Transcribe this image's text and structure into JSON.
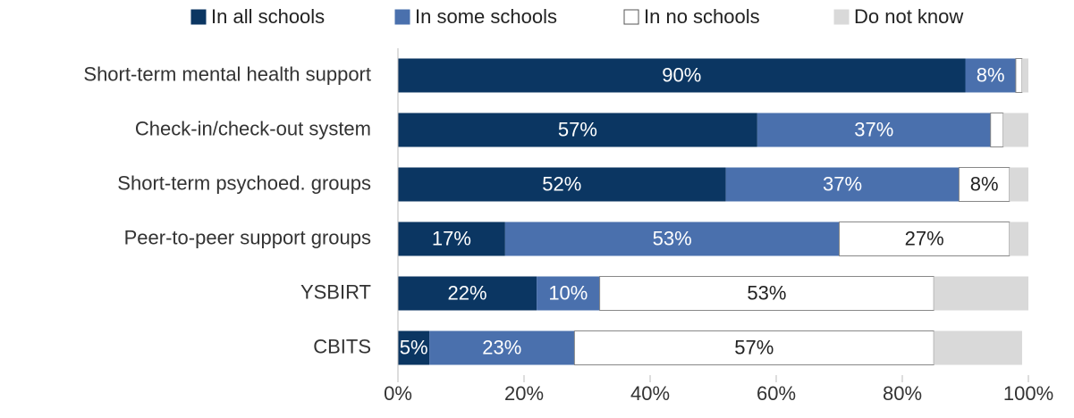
{
  "chart_data": {
    "type": "stacked-barh",
    "categories": [
      "Short-term mental health support",
      "Check-in/check-out system",
      "Short-term psychoed. groups",
      "Peer-to-peer support groups",
      "YSBIRT",
      "CBITS"
    ],
    "series": [
      {
        "name": "In all schools",
        "color": "#0b3662",
        "values": [
          90,
          57,
          52,
          17,
          22,
          5
        ],
        "value_labels": [
          "90%",
          "57%",
          "52%",
          "17%",
          "22%",
          "5%"
        ]
      },
      {
        "name": "In some schools",
        "color": "#4a70ad",
        "values": [
          8,
          37,
          37,
          53,
          10,
          23
        ],
        "value_labels": [
          "8%",
          "37%",
          "37%",
          "53%",
          "10%",
          "23%"
        ]
      },
      {
        "name": "In no schools",
        "color": "#ffffff",
        "values": [
          1,
          2,
          8,
          27,
          53,
          57
        ],
        "value_labels": [
          null,
          null,
          "8%",
          "27%",
          "53%",
          "57%"
        ]
      },
      {
        "name": "Do not know",
        "color": "#d9d9d9",
        "values": [
          1,
          4,
          3,
          3,
          15,
          14
        ],
        "value_labels": [
          null,
          null,
          null,
          null,
          null,
          null
        ]
      }
    ],
    "xlim": [
      0,
      100
    ],
    "xticks": [
      {
        "value": 0,
        "label": "0%"
      },
      {
        "value": 20,
        "label": "20%"
      },
      {
        "value": 40,
        "label": "40%"
      },
      {
        "value": 60,
        "label": "60%"
      },
      {
        "value": 80,
        "label": "80%"
      },
      {
        "value": 100,
        "label": "100%"
      }
    ],
    "legend": "top"
  }
}
